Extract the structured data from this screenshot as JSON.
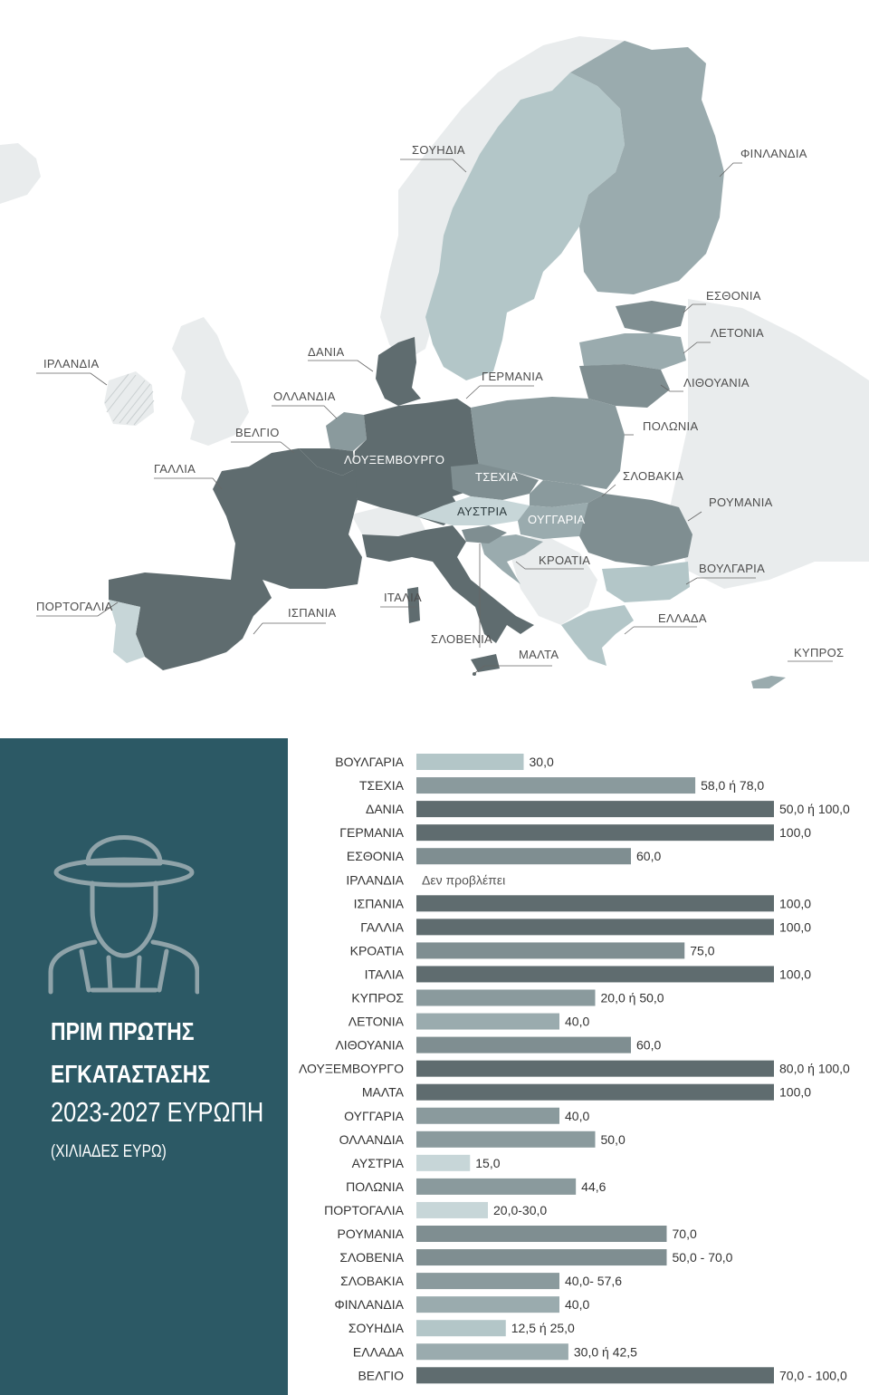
{
  "map": {
    "labels": {
      "sweden": "ΣΟΥΗΔΙΑ",
      "finland": "ΦΙΝΛΑΝΔΙΑ",
      "estonia": "ΕΣΘΟΝΙΑ",
      "latvia": "ΛΕΤΟΝΙΑ",
      "lithuania": "ΛΙΘΟΥΑΝΙΑ",
      "ireland": "ΙΡΛΑΝΔΙΑ",
      "denmark": "ΔΑΝΙΑ",
      "germany": "ΓΕΡΜΑΝΙΑ",
      "netherlands": "ΟΛΛΑΝΔΙΑ",
      "belgium": "ΒΕΛΓΙΟ",
      "poland": "ΠΟΛΩΝΙΑ",
      "luxembourg": "ΛΟΥΞΕΜΒΟΥΡΓΟ",
      "france": "ΓΑΛΛΙΑ",
      "czechia": "ΤΣΕΧΙΑ",
      "slovakia": "ΣΛΟΒΑΚΙΑ",
      "austria": "ΑΥΣΤΡΙΑ",
      "hungary": "ΟΥΓΓΑΡΙΑ",
      "romania": "ΡΟΥΜΑΝΙΑ",
      "croatia": "ΚΡΟΑΤΙΑ",
      "bulgaria": "ΒΟΥΛΓΑΡΙΑ",
      "portugal": "ΠΟΡΤΟΓΑΛΙΑ",
      "spain": "ΙΣΠΑΝΙΑ",
      "italy": "ΙΤΑΛΙΑ",
      "greece": "ΕΛΛΑΔΑ",
      "slovenia": "ΣΛΟΒΕΝΙΑ",
      "malta": "ΜΑΛΤΑ",
      "cyprus": "ΚΥΠΡΟΣ"
    },
    "colors": {
      "background_land": "#e9eced",
      "very_light": "#c7d6d8",
      "light": "#b3c6c8",
      "mid": "#9aabae",
      "mid_dark": "#7f8e91",
      "dark": "#5f6c6f"
    }
  },
  "panel": {
    "title_line1": "ΠΡΙΜ ΠΡΩΤΗΣ",
    "title_line2": "ΕΓΚΑΤΑΣΤΑΣΗΣ",
    "years": "2023-2027 ΕΥΡΩΠΗ",
    "unit": "(ΧΙΛΙΑΔΕΣ ΕΥΡΩ)",
    "icon": "farmer-icon",
    "color": "#2c5965"
  },
  "chart_data": {
    "type": "bar",
    "orientation": "horizontal",
    "xlim": [
      0,
      100
    ],
    "categories": [
      "ΒΟΥΛΓΑΡΙΑ",
      "ΤΣΕΧΙΑ",
      "ΔΑΝΙΑ",
      "ΓΕΡΜΑΝΙΑ",
      "ΕΣΘΟΝΙΑ",
      "ΙΡΛΑΝΔΙΑ",
      "ΙΣΠΑΝΙΑ",
      "ΓΑΛΛΙΑ",
      "ΚΡΟΑΤΙΑ",
      "ΙΤΑΛΙΑ",
      "ΚΥΠΡΟΣ",
      "ΛΕΤΟΝΙΑ",
      "ΛΙΘΟΥΑΝΙΑ",
      "ΛΟΥΞΕΜΒΟΥΡΓΟ",
      "ΜΑΛΤΑ",
      "ΟΥΓΓΑΡΙΑ",
      "ΟΛΛΑΝΔΙΑ",
      "ΑΥΣΤΡΙΑ",
      "ΠΟΛΩΝΙΑ",
      "ΠΟΡΤΟΓΑΛΙΑ",
      "ΡΟΥΜΑΝΙΑ",
      "ΣΛΟΒΕΝΙΑ",
      "ΣΛΟΒΑΚΙΑ",
      "ΦΙΝΛΑΝΔΙΑ",
      "ΣΟΥΗΔΙΑ",
      "ΕΛΛΑΔΑ",
      "ΒΕΛΓΙΟ"
    ],
    "values": [
      30,
      78,
      100,
      100,
      60,
      0,
      100,
      100,
      75,
      100,
      50,
      40,
      60,
      100,
      100,
      40,
      50,
      15,
      44.6,
      20,
      70,
      70,
      40,
      40,
      25,
      42.5,
      100
    ],
    "value_labels": [
      "30,0",
      "58,0 ή 78,0",
      "50,0 ή 100,0",
      "100,0",
      "60,0",
      "Δεν προβλέπει",
      "100,0",
      "100,0",
      "75,0",
      "100,0",
      "20,0 ή 50,0",
      "40,0",
      "60,0",
      "80,0 ή 100,0",
      "100,0",
      "40,0",
      "50,0",
      "15,0",
      "44,6",
      "20,0-30,0",
      "70,0",
      "50,0 - 70,0",
      "40,0- 57,6",
      "40,0",
      "12,5 ή 25,0",
      "30,0 ή 42,5",
      "70,0 - 100,0"
    ],
    "bar_colors": [
      "#b3c6c8",
      "#8a9a9d",
      "#5f6c6f",
      "#5f6c6f",
      "#7f8e91",
      "#ffffff",
      "#5f6c6f",
      "#5f6c6f",
      "#7f8e91",
      "#5f6c6f",
      "#8a9a9d",
      "#9aabae",
      "#7f8e91",
      "#5f6c6f",
      "#5f6c6f",
      "#8a9a9d",
      "#8a9a9d",
      "#c7d6d8",
      "#8a9a9d",
      "#c7d6d8",
      "#7f8e91",
      "#7f8e91",
      "#8a9a9d",
      "#9aabae",
      "#b3c6c8",
      "#9aabae",
      "#5f6c6f"
    ]
  }
}
